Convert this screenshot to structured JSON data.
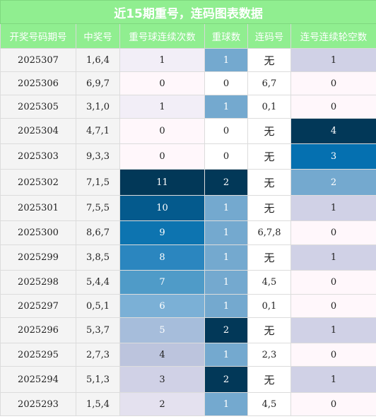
{
  "title": "近15期重号，连码图表数据",
  "headers": [
    "开奖号码期号",
    "中奖号",
    "重号球连续次数",
    "重球数",
    "连码号",
    "连号连续轮空数"
  ],
  "rows": [
    {
      "period": "2025307",
      "draw": "1,6,4",
      "repeat_streak": "1",
      "repeat_count": "1",
      "consecutive": "无",
      "gap_streak": "1"
    },
    {
      "period": "2025306",
      "draw": "6,9,7",
      "repeat_streak": "0",
      "repeat_count": "0",
      "consecutive": "6,7",
      "gap_streak": "0"
    },
    {
      "period": "2025305",
      "draw": "3,1,0",
      "repeat_streak": "1",
      "repeat_count": "1",
      "consecutive": "0,1",
      "gap_streak": "0"
    },
    {
      "period": "2025304",
      "draw": "4,7,1",
      "repeat_streak": "0",
      "repeat_count": "0",
      "consecutive": "无",
      "gap_streak": "4"
    },
    {
      "period": "2025303",
      "draw": "9,3,3",
      "repeat_streak": "0",
      "repeat_count": "0",
      "consecutive": "无",
      "gap_streak": "3"
    },
    {
      "period": "2025302",
      "draw": "7,1,5",
      "repeat_streak": "11",
      "repeat_count": "2",
      "consecutive": "无",
      "gap_streak": "2"
    },
    {
      "period": "2025301",
      "draw": "7,5,5",
      "repeat_streak": "10",
      "repeat_count": "1",
      "consecutive": "无",
      "gap_streak": "1"
    },
    {
      "period": "2025300",
      "draw": "8,6,7",
      "repeat_streak": "9",
      "repeat_count": "1",
      "consecutive": "6,7,8",
      "gap_streak": "0"
    },
    {
      "period": "2025299",
      "draw": "3,8,5",
      "repeat_streak": "8",
      "repeat_count": "1",
      "consecutive": "无",
      "gap_streak": "1"
    },
    {
      "period": "2025298",
      "draw": "5,4,4",
      "repeat_streak": "7",
      "repeat_count": "1",
      "consecutive": "4,5",
      "gap_streak": "0"
    },
    {
      "period": "2025297",
      "draw": "0,5,1",
      "repeat_streak": "6",
      "repeat_count": "1",
      "consecutive": "0,1",
      "gap_streak": "0"
    },
    {
      "period": "2025296",
      "draw": "5,3,7",
      "repeat_streak": "5",
      "repeat_count": "2",
      "consecutive": "无",
      "gap_streak": "1"
    },
    {
      "period": "2025295",
      "draw": "2,7,3",
      "repeat_streak": "4",
      "repeat_count": "1",
      "consecutive": "2,3",
      "gap_streak": "0"
    },
    {
      "period": "2025294",
      "draw": "5,1,3",
      "repeat_streak": "3",
      "repeat_count": "2",
      "consecutive": "无",
      "gap_streak": "1"
    },
    {
      "period": "2025293",
      "draw": "1,5,4",
      "repeat_streak": "2",
      "repeat_count": "1",
      "consecutive": "4,5",
      "gap_streak": "0"
    }
  ],
  "colors": {
    "header_bg": "#90ee90",
    "header_text": "#ffffff",
    "repeat_streak_scale": [
      "#f2eef7",
      "#e4e1ef",
      "#d0d1e6",
      "#bcc4dd",
      "#a6bddb",
      "#7bb0d6",
      "#4f9bc8",
      "#2b86bf",
      "#0d74b0",
      "#045a8d",
      "#023858"
    ],
    "repeat_count": {
      "0": "#ffffff",
      "1": "#74a9cf",
      "2": "#023858"
    },
    "gap_streak": {
      "0": "#fff7fb",
      "1": "#d0d1e6",
      "2": "#74a9cf",
      "3": "#0570b0",
      "4": "#023858"
    }
  }
}
